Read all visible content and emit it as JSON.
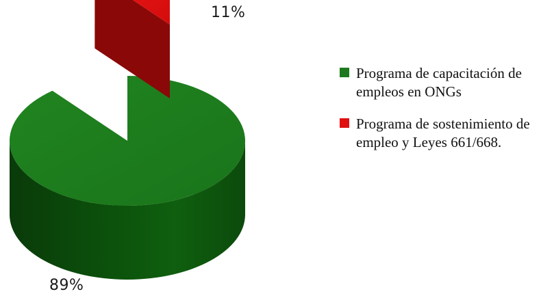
{
  "chart_data": {
    "type": "pie",
    "style": "3d-exploded",
    "slices": [
      {
        "name": "Programa de capacitación de empleos en ONGs",
        "value": 89,
        "label": "89%",
        "color": "#1f7a1f"
      },
      {
        "name": "Programa de sostenimiento de empleo y Leyes 661/668.",
        "value": 11,
        "label": "11%",
        "color": "#e01010"
      }
    ],
    "legend_position": "right",
    "legend": [
      {
        "label": "Programa de capacitación de empleos en ONGs",
        "color": "#1f7a1f"
      },
      {
        "label": "Programa de sostenimiento de empleo y Leyes 661/668.",
        "color": "#e01010"
      }
    ]
  }
}
